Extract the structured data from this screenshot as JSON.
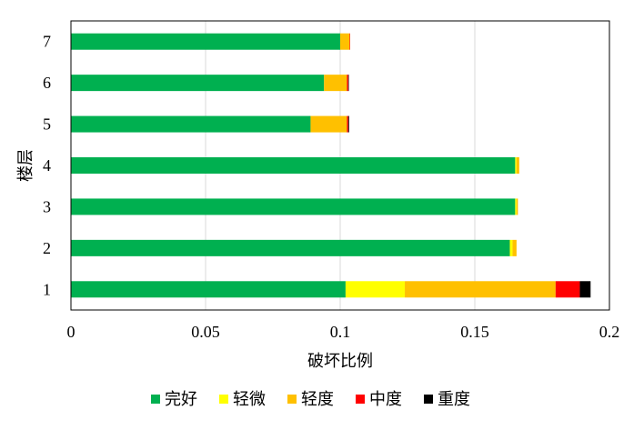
{
  "chart_data": {
    "type": "bar",
    "orientation": "horizontal",
    "stacked": true,
    "xlabel": "破坏比例",
    "ylabel": "楼层",
    "xlim": [
      0,
      0.2
    ],
    "x_ticks": [
      "0",
      "0.05",
      "0.1",
      "0.15",
      "0.2"
    ],
    "x_tick_values": [
      0,
      0.05,
      0.1,
      0.15,
      0.2
    ],
    "grid": "vertical",
    "legend_position": "bottom",
    "categories": [
      "1",
      "2",
      "3",
      "4",
      "5",
      "6",
      "7"
    ],
    "series": [
      {
        "name": "完好",
        "color": "#00b050",
        "values": [
          0.102,
          0.163,
          0.165,
          0.165,
          0.089,
          0.094,
          0.1
        ]
      },
      {
        "name": "轻微",
        "color": "#ffff00",
        "values": [
          0.022,
          0.001,
          0.0005,
          0.0005,
          0.0,
          0.0,
          0.0
        ]
      },
      {
        "name": "轻度",
        "color": "#ffc000",
        "values": [
          0.056,
          0.0015,
          0.0005,
          0.001,
          0.0135,
          0.0085,
          0.0035
        ]
      },
      {
        "name": "中度",
        "color": "#ff0000",
        "values": [
          0.009,
          0.0,
          0.0,
          0.0,
          0.0005,
          0.0005,
          0.0002
        ]
      },
      {
        "name": "重度",
        "color": "#000000",
        "values": [
          0.004,
          0.0,
          0.0,
          0.0,
          0.0003,
          0.0002,
          0.0
        ]
      }
    ]
  }
}
